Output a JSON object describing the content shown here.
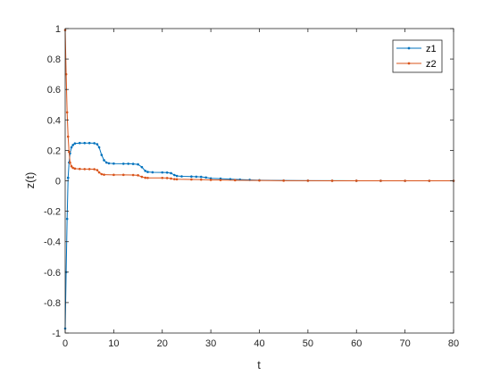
{
  "chart_data": {
    "type": "line",
    "title": "",
    "xlabel": "t",
    "ylabel": "z(t)",
    "xlim": [
      0,
      80
    ],
    "ylim": [
      -1,
      1
    ],
    "xticks": [
      0,
      10,
      20,
      30,
      40,
      50,
      60,
      70,
      80
    ],
    "yticks": [
      -1,
      -0.8,
      -0.6,
      -0.4,
      -0.2,
      0,
      0.2,
      0.4,
      0.6,
      0.8,
      1
    ],
    "grid": false,
    "legend": "top-right",
    "series": [
      {
        "name": "z1",
        "color": "#0072BD",
        "marker": "point",
        "x": [
          0,
          0.2,
          0.4,
          0.6,
          0.8,
          1.0,
          1.3,
          1.6,
          2,
          3,
          4,
          5,
          6,
          6.6,
          7,
          7.5,
          8,
          8.5,
          9,
          10,
          12,
          13,
          14,
          15,
          15.8,
          16.5,
          17,
          18,
          20,
          21,
          21.8,
          22.5,
          23,
          24,
          26,
          27,
          28,
          29,
          30,
          32,
          34,
          36,
          38,
          40,
          45,
          50,
          55,
          60,
          65,
          70,
          75,
          80
        ],
        "y": [
          -0.97,
          -0.6,
          -0.25,
          0.02,
          0.12,
          0.18,
          0.22,
          0.235,
          0.245,
          0.248,
          0.248,
          0.248,
          0.247,
          0.24,
          0.22,
          0.17,
          0.135,
          0.12,
          0.115,
          0.113,
          0.112,
          0.112,
          0.111,
          0.108,
          0.09,
          0.065,
          0.058,
          0.056,
          0.055,
          0.054,
          0.05,
          0.038,
          0.032,
          0.029,
          0.028,
          0.027,
          0.026,
          0.022,
          0.016,
          0.014,
          0.011,
          0.008,
          0.006,
          0.004,
          0.002,
          0.001,
          0.0005,
          0.0002,
          0.0001,
          0,
          0,
          0
        ]
      },
      {
        "name": "z2",
        "color": "#D95319",
        "marker": "point",
        "x": [
          0,
          0.2,
          0.4,
          0.6,
          0.8,
          1.0,
          1.3,
          1.6,
          2,
          3,
          4,
          5,
          6,
          6.6,
          7,
          7.5,
          8,
          10,
          12,
          14,
          15,
          15.8,
          16.5,
          17,
          20,
          21,
          21.8,
          22.5,
          23,
          26,
          28,
          30,
          32,
          35,
          40,
          45,
          50,
          55,
          60,
          65,
          70,
          75,
          80
        ],
        "y": [
          0.99,
          0.7,
          0.45,
          0.29,
          0.19,
          0.12,
          0.095,
          0.085,
          0.08,
          0.078,
          0.077,
          0.077,
          0.076,
          0.07,
          0.055,
          0.044,
          0.04,
          0.039,
          0.039,
          0.038,
          0.036,
          0.026,
          0.02,
          0.019,
          0.019,
          0.018,
          0.015,
          0.011,
          0.01,
          0.009,
          0.008,
          0.006,
          0.005,
          0.004,
          0.002,
          0.001,
          0.0005,
          0.0002,
          0.0001,
          0,
          0,
          0,
          0
        ]
      }
    ]
  }
}
